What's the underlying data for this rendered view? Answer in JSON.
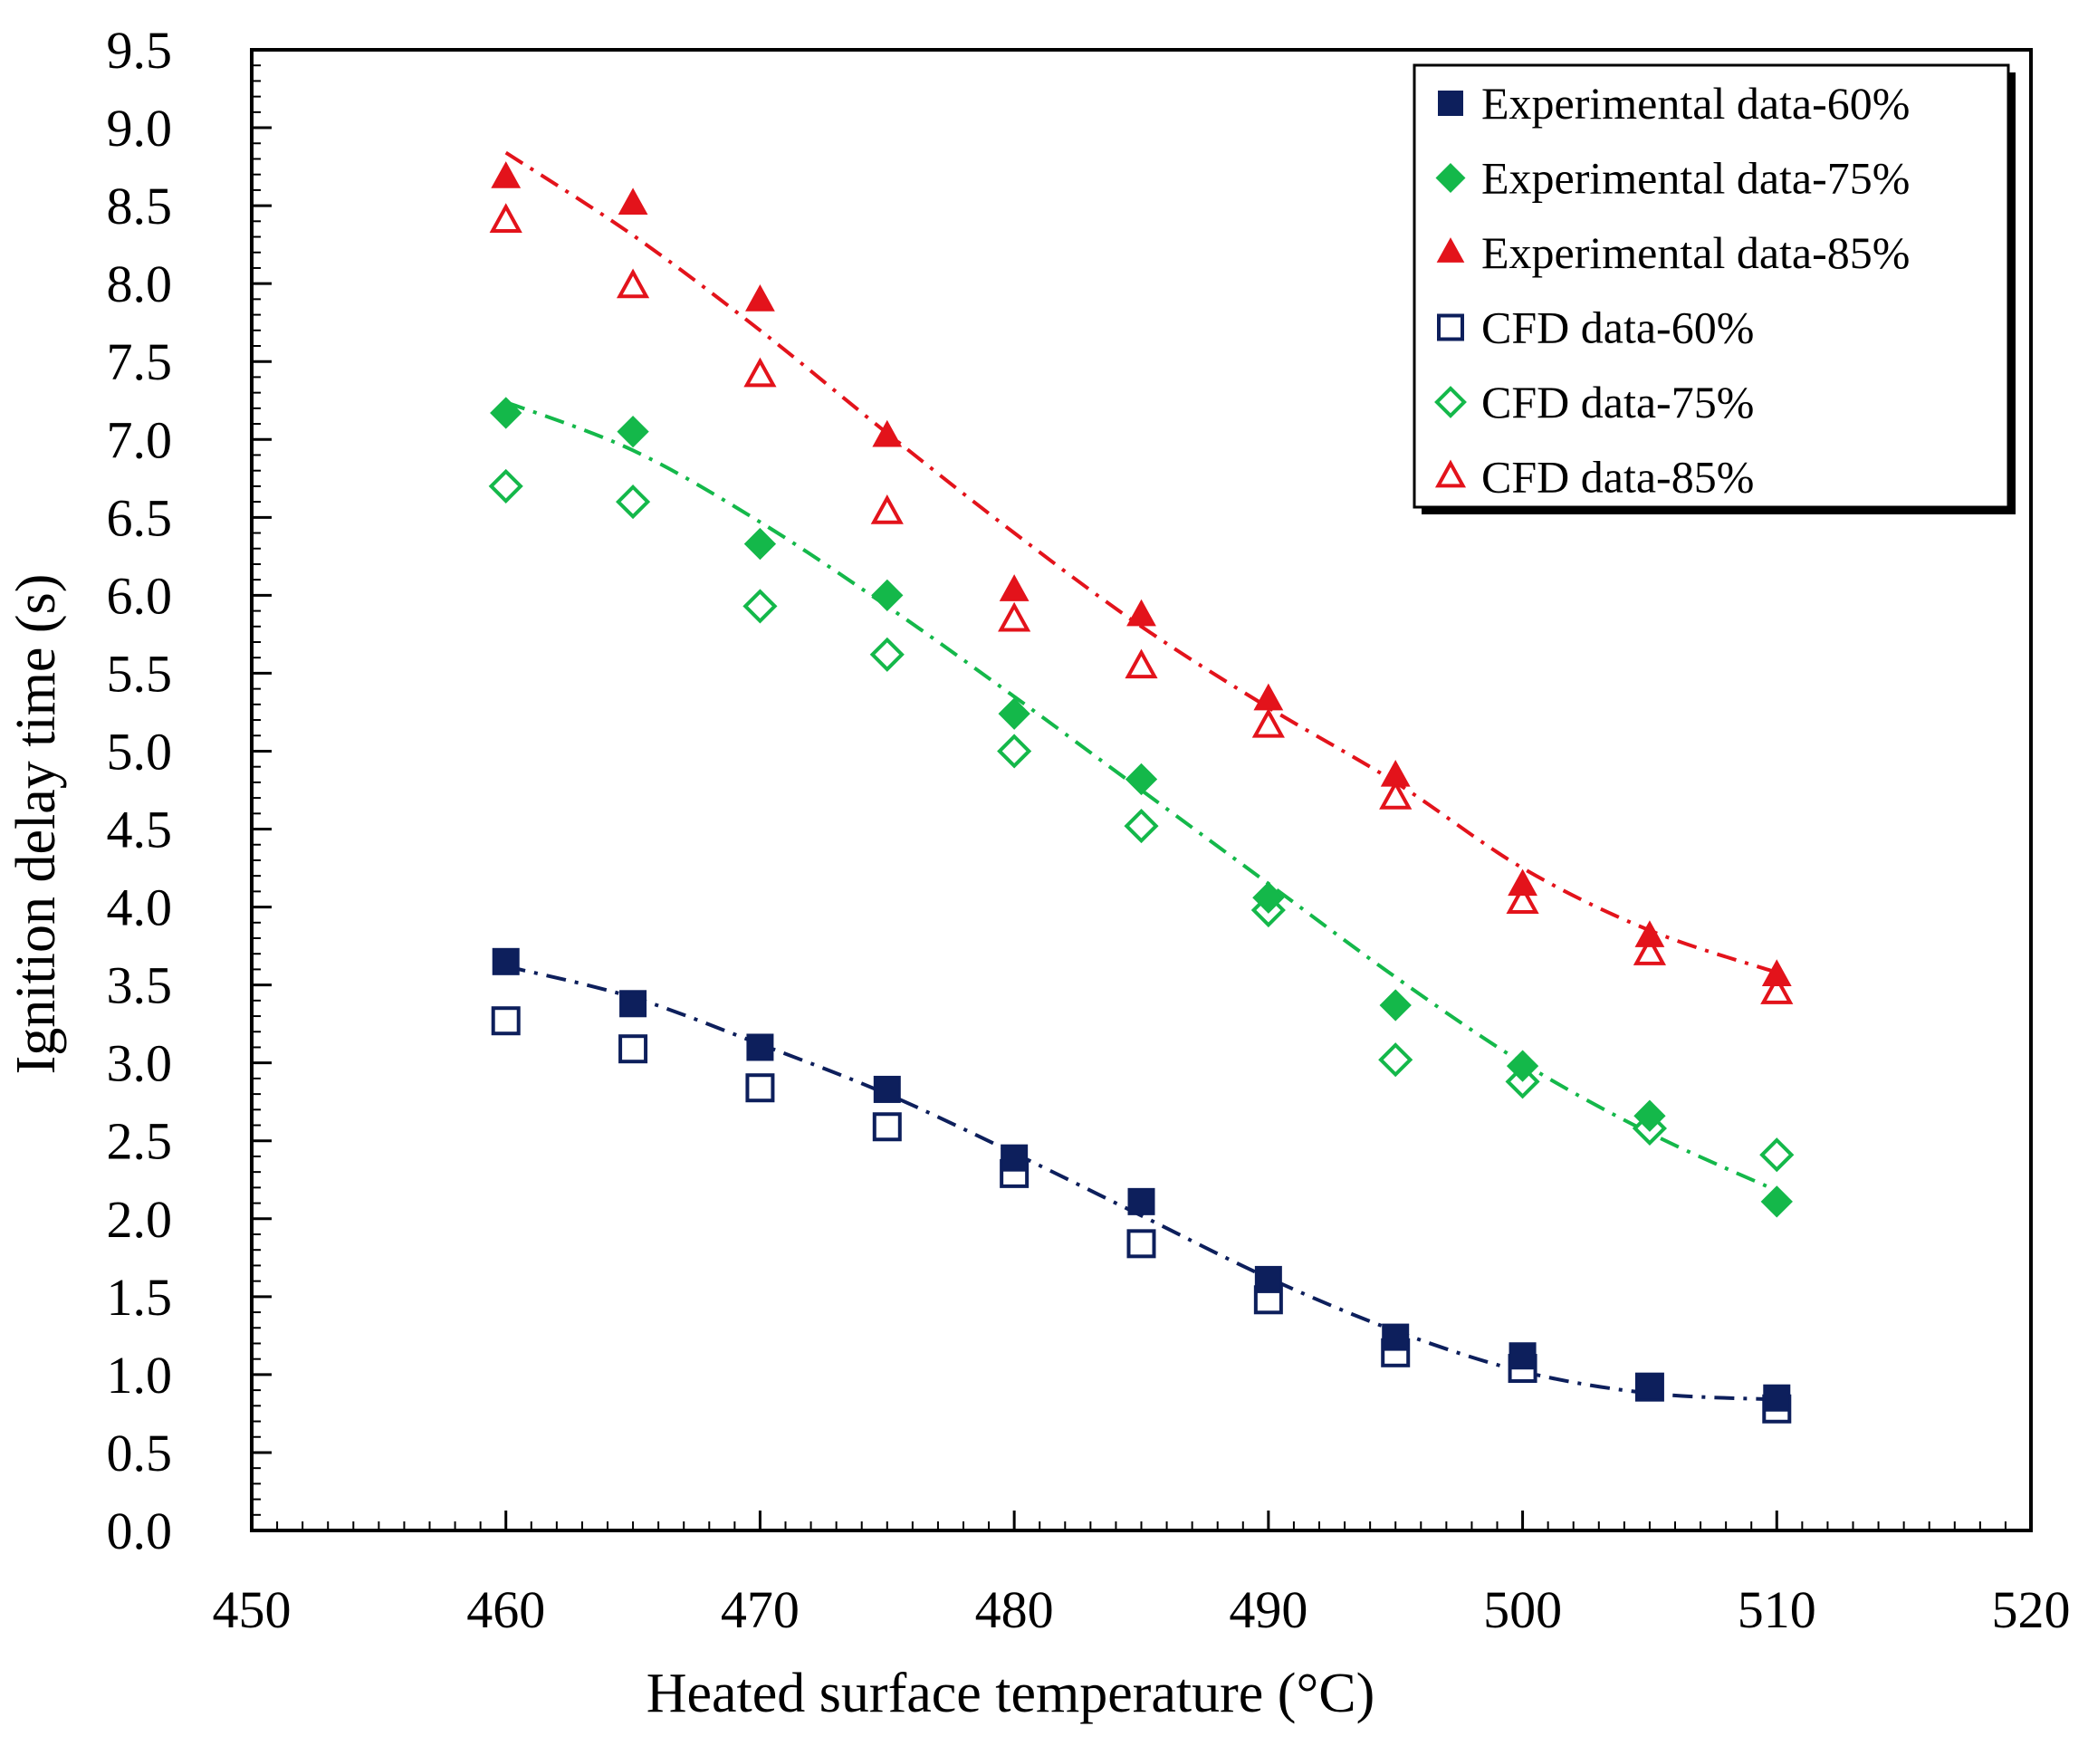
{
  "chart_data": {
    "type": "scatter",
    "title": "",
    "xlabel": "Heated surface temperature (°C)",
    "ylabel": "Ignition delay time (s)",
    "xlim": [
      450,
      520
    ],
    "ylim": [
      0,
      9.5
    ],
    "xticks": [
      450,
      460,
      470,
      480,
      490,
      500,
      510,
      520
    ],
    "xtick_labels": [
      "450",
      "460",
      "470",
      "480",
      "490",
      "500",
      "510",
      "520"
    ],
    "yticks": [
      0,
      0.5,
      1,
      1.5,
      2,
      2.5,
      3,
      3.5,
      4,
      4.5,
      5,
      5.5,
      6,
      6.5,
      7,
      7.5,
      8,
      8.5,
      9,
      9.5
    ],
    "ytick_labels": [
      "0.0",
      "0.5",
      "1.0",
      "1.5",
      "2.0",
      "2.5",
      "3.0",
      "3.5",
      "4.0",
      "4.5",
      "5.0",
      "5.5",
      "6.0",
      "6.5",
      "7.0",
      "7.5",
      "8.0",
      "8.5",
      "9.0",
      "9.5"
    ],
    "legend_position": "top-right",
    "x": [
      460,
      465,
      470,
      475,
      480,
      485,
      490,
      495,
      500,
      505,
      510
    ],
    "series": [
      {
        "name": "Experimental data-60%",
        "marker": "square",
        "filled": true,
        "color": "#0d1f5c",
        "x": [
          460,
          465,
          470,
          475,
          480,
          485,
          490,
          495,
          500,
          505,
          510
        ],
        "values": [
          3.65,
          3.38,
          3.1,
          2.83,
          2.39,
          2.11,
          1.61,
          1.24,
          1.12,
          0.92,
          0.85
        ]
      },
      {
        "name": "Experimental data-75%",
        "marker": "diamond",
        "filled": true,
        "color": "#14b84a",
        "x": [
          460,
          465,
          470,
          475,
          480,
          485,
          490,
          495,
          500,
          505,
          510
        ],
        "values": [
          7.17,
          7.05,
          6.33,
          6.0,
          5.24,
          4.82,
          4.06,
          3.37,
          2.98,
          2.66,
          2.11
        ]
      },
      {
        "name": "Experimental data-85%",
        "marker": "triangle",
        "filled": true,
        "color": "#e3131b",
        "x": [
          460,
          465,
          470,
          475,
          480,
          485,
          490,
          495,
          500,
          505,
          510
        ],
        "values": [
          8.68,
          8.51,
          7.89,
          7.02,
          6.03,
          5.87,
          5.33,
          4.84,
          4.14,
          3.81,
          3.56
        ]
      },
      {
        "name": "CFD data-60%",
        "marker": "square",
        "filled": false,
        "color": "#0d1f5c",
        "x": [
          460,
          465,
          470,
          475,
          480,
          485,
          490,
          495,
          500,
          505,
          510
        ],
        "values": [
          3.27,
          3.09,
          2.84,
          2.59,
          2.29,
          1.84,
          1.48,
          1.14,
          1.04,
          0.92,
          0.78
        ]
      },
      {
        "name": "CFD data-75%",
        "marker": "diamond",
        "filled": false,
        "color": "#14b84a",
        "x": [
          460,
          465,
          470,
          475,
          480,
          485,
          490,
          495,
          500,
          505,
          510
        ],
        "values": [
          6.7,
          6.6,
          5.93,
          5.62,
          5.0,
          4.52,
          3.98,
          3.02,
          2.88,
          2.58,
          2.41
        ]
      },
      {
        "name": "CFD data-85%",
        "marker": "triangle",
        "filled": false,
        "color": "#e3131b",
        "x": [
          460,
          465,
          470,
          475,
          480,
          485,
          490,
          495,
          500,
          505,
          510
        ],
        "values": [
          8.4,
          7.98,
          7.41,
          6.53,
          5.84,
          5.54,
          5.16,
          4.7,
          4.03,
          3.7,
          3.45
        ]
      }
    ],
    "trendlines": [
      {
        "for_series": "Experimental data-60%",
        "style": "dash-dot",
        "color": "#0d1f5c",
        "x": [
          460,
          465,
          470,
          475,
          480,
          485,
          490,
          495,
          500,
          505,
          510
        ],
        "values": [
          3.62,
          3.42,
          3.12,
          2.8,
          2.42,
          2.02,
          1.62,
          1.28,
          1.02,
          0.88,
          0.84
        ]
      },
      {
        "for_series": "Experimental data-75%",
        "style": "dash-dot",
        "color": "#14b84a",
        "x": [
          460,
          465,
          470,
          475,
          480,
          485,
          490,
          495,
          500,
          505,
          510
        ],
        "values": [
          7.24,
          6.93,
          6.47,
          5.93,
          5.35,
          4.75,
          4.15,
          3.55,
          3.0,
          2.55,
          2.18
        ]
      },
      {
        "for_series": "Experimental data-85%",
        "style": "dash-dot",
        "color": "#e3131b",
        "x": [
          460,
          465,
          470,
          475,
          480,
          485,
          490,
          495,
          500,
          505,
          510
        ],
        "values": [
          8.84,
          8.31,
          7.7,
          7.04,
          6.4,
          5.8,
          5.28,
          4.8,
          4.25,
          3.85,
          3.58
        ]
      }
    ]
  }
}
